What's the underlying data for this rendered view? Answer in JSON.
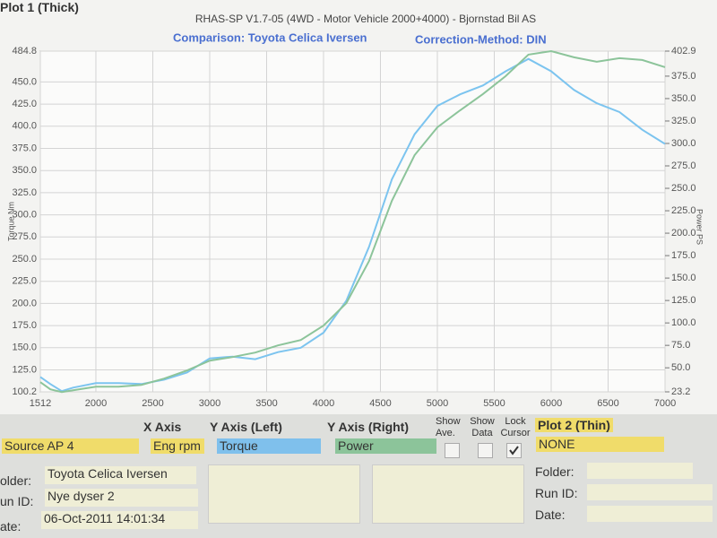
{
  "header": {
    "title": "RHAS-SP V1.7-05   (4WD - Motor Vehicle 2000+4000) - Bjornstad Bil AS"
  },
  "chart_data": {
    "type": "line",
    "title": "Comparison: Toyota Celica Iversen",
    "subtitle": "Correction-Method: DIN",
    "ylabel": "Torque Nm",
    "y2label": "Power PS",
    "x": [
      1512,
      1600,
      1700,
      1800,
      2000,
      2200,
      2400,
      2600,
      2800,
      3000,
      3200,
      3400,
      3600,
      3800,
      4000,
      4200,
      4400,
      4600,
      4800,
      5000,
      5200,
      5400,
      5600,
      5800,
      6000,
      6200,
      6400,
      6600,
      6800,
      7000
    ],
    "series": [
      {
        "name": "Torque",
        "color": "#7cc4ef",
        "values": [
          117,
          109,
          101,
          105,
          110,
          110,
          109,
          114,
          122,
          138,
          140,
          137,
          145,
          150,
          167,
          203,
          264,
          340,
          391,
          423,
          436,
          446,
          462,
          476,
          462,
          441,
          426,
          416,
          396,
          380
        ]
      },
      {
        "name": "Power",
        "color": "#8cc49a",
        "axis": "y2",
        "values": [
          34,
          26,
          23,
          25,
          29,
          29,
          31,
          38,
          47,
          58,
          62,
          67,
          75,
          81,
          97,
          122,
          169,
          236,
          287,
          318,
          337,
          355,
          375,
          399,
          402.9,
          396,
          391,
          395,
          393,
          385
        ]
      }
    ],
    "xlim": [
      1512,
      7000
    ],
    "xticks": [
      1512,
      2000,
      2500,
      3000,
      3500,
      4000,
      4500,
      5000,
      5500,
      6000,
      6500,
      7000
    ],
    "ylim": [
      100.2,
      484.8
    ],
    "yticks": [
      100.2,
      {
        "value": 125,
        "label": "125.0"
      },
      {
        "value": 150,
        "label": "150.0"
      },
      {
        "value": 175,
        "label": "175.0"
      },
      {
        "value": 200,
        "label": "200.0"
      },
      {
        "value": 225,
        "label": "225.0"
      },
      {
        "value": 250,
        "label": "250.0"
      },
      {
        "value": 275,
        "label": "275.0"
      },
      {
        "value": 300,
        "label": "300.0"
      },
      {
        "value": 325,
        "label": "325.0"
      },
      {
        "value": 350,
        "label": "350.0"
      },
      {
        "value": 375,
        "label": "375.0"
      },
      {
        "value": 400,
        "label": "400.0"
      },
      {
        "value": 425,
        "label": "425.0"
      },
      {
        "value": 450,
        "label": "450.0"
      },
      484.8
    ],
    "y2lim": [
      23.2,
      402.9
    ],
    "y2ticks": [
      23.2,
      {
        "value": 50,
        "label": "50.0"
      },
      {
        "value": 75,
        "label": "75.0"
      },
      {
        "value": 100,
        "label": "100.0"
      },
      {
        "value": 125,
        "label": "125.0"
      },
      {
        "value": 150,
        "label": "150.0"
      },
      {
        "value": 175,
        "label": "175.0"
      },
      {
        "value": 200,
        "label": "200.0"
      },
      {
        "value": 225,
        "label": "225.0"
      },
      {
        "value": 250,
        "label": "250.0"
      },
      {
        "value": 275,
        "label": "275.0"
      },
      {
        "value": 300,
        "label": "300.0"
      },
      {
        "value": 325,
        "label": "325.0"
      },
      {
        "value": 350,
        "label": "350.0"
      },
      {
        "value": 375,
        "label": "375.0"
      },
      402.9
    ],
    "grid": true
  },
  "controls": {
    "plot1_label": "Plot 1 (Thick)",
    "plot1_source": "Source AP 4",
    "x_axis_label": "X Axis",
    "x_axis_value": "Eng rpm",
    "y_left_label": "Y Axis (Left)",
    "y_right_label": "Y Axis (Right)",
    "show_ave": "Show Ave.",
    "show_data": "Show Data",
    "lock_cursor": "Lock Cursor",
    "plot2_label": "Plot 2 (Thin)",
    "plot2_source": "NONE"
  },
  "info_left": {
    "folder_label": "older:",
    "folder": "Toyota Celica Iversen",
    "run_label": "un ID:",
    "run": "Nye dyser   2",
    "date_label": "ate:",
    "date": "06-Oct-2011  14:01:34"
  },
  "info_right": {
    "folder_label": "Folder:",
    "run_label": "Run ID:",
    "date_label": "Date:"
  }
}
